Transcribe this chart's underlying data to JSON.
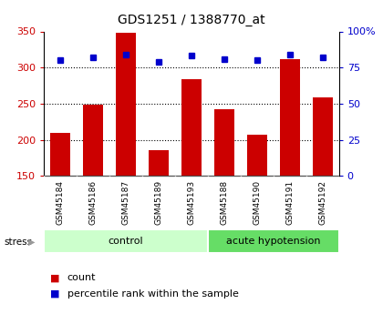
{
  "title": "GDS1251 / 1388770_at",
  "samples": [
    "GSM45184",
    "GSM45186",
    "GSM45187",
    "GSM45189",
    "GSM45193",
    "GSM45188",
    "GSM45190",
    "GSM45191",
    "GSM45192"
  ],
  "counts": [
    210,
    248,
    348,
    185,
    284,
    242,
    207,
    312,
    259
  ],
  "percentiles": [
    80,
    82,
    84,
    79,
    83,
    81,
    80,
    84,
    82
  ],
  "groups": [
    {
      "label": "control",
      "start": 0,
      "end": 5,
      "color": "#ccffcc"
    },
    {
      "label": "acute hypotension",
      "start": 5,
      "end": 9,
      "color": "#66dd66"
    }
  ],
  "bar_color": "#cc0000",
  "dot_color": "#0000cc",
  "ylim_left": [
    150,
    350
  ],
  "ylim_right": [
    0,
    100
  ],
  "yticks_left": [
    150,
    200,
    250,
    300,
    350
  ],
  "yticks_right": [
    0,
    25,
    50,
    75,
    100
  ],
  "ytick_labels_right": [
    "0",
    "25",
    "50",
    "75",
    "100%"
  ],
  "stress_label": "stress",
  "legend_count": "count",
  "legend_percentile": "percentile rank within the sample",
  "background_color": "#ffffff",
  "tick_area_color": "#cccccc",
  "gridline_color": "#888888",
  "gridlines": [
    200,
    250,
    300
  ]
}
